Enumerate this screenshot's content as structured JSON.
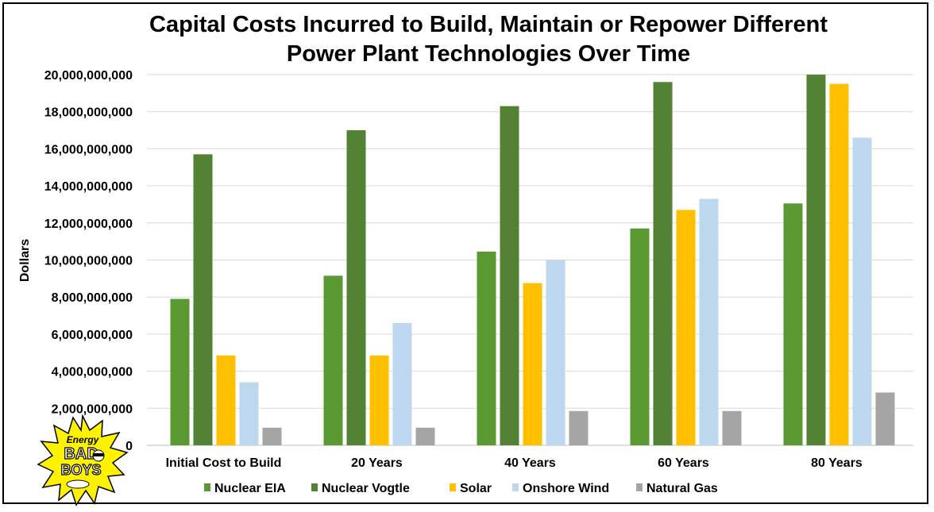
{
  "chart_data": {
    "type": "bar",
    "title_line1": "Capital Costs Incurred to Build, Maintain or Repower Different",
    "title_line2": "Power Plant Technologies Over Time",
    "ylabel": "Dollars",
    "xlabel": "",
    "ylim": [
      0,
      20000000000
    ],
    "yticks": [
      "0",
      "2,000,000,000",
      "4,000,000,000",
      "6,000,000,000",
      "8,000,000,000",
      "10,000,000,000",
      "12,000,000,000",
      "14,000,000,000",
      "16,000,000,000",
      "18,000,000,000",
      "20,000,000,000"
    ],
    "grid": true,
    "legend_position": "bottom",
    "categories": [
      "Initial Cost to Build",
      "20 Years",
      "40 Years",
      "60 Years",
      "80 Years"
    ],
    "series": [
      {
        "name": "Nuclear EIA",
        "color": "#5b9a32",
        "values": [
          7900000000,
          9150000000,
          10450000000,
          11700000000,
          13050000000
        ]
      },
      {
        "name": "Nuclear Vogtle",
        "color": "#548235",
        "values": [
          15700000000,
          17000000000,
          18300000000,
          19600000000,
          20000000000
        ]
      },
      {
        "name": "Solar",
        "color": "#ffc000",
        "values": [
          4850000000,
          4850000000,
          8750000000,
          12700000000,
          19500000000
        ]
      },
      {
        "name": "Onshore Wind",
        "color": "#bdd7ee",
        "values": [
          3400000000,
          6600000000,
          10000000000,
          13300000000,
          16600000000
        ]
      },
      {
        "name": "Natural Gas",
        "color": "#a5a5a5",
        "values": [
          950000000,
          950000000,
          1850000000,
          1850000000,
          2850000000
        ]
      }
    ]
  },
  "logo": {
    "text_top": "Energy",
    "text_mid": "BAD",
    "text_bot": "BOYS",
    "color": "#fff200"
  }
}
